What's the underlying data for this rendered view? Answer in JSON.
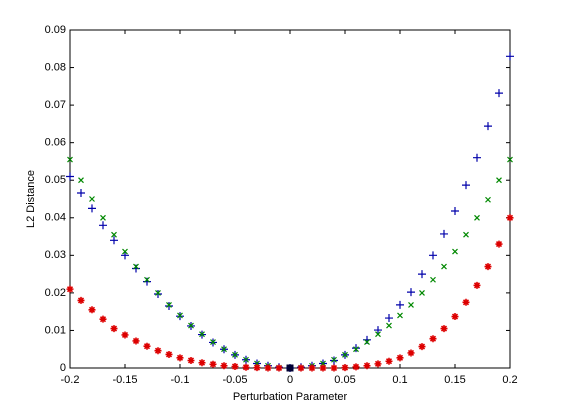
{
  "chart_data": {
    "type": "scatter",
    "xlabel": "Perturbation Parameter",
    "ylabel": "L2 Distance",
    "x": [
      -0.2,
      -0.19,
      -0.18,
      -0.17,
      -0.16,
      -0.15,
      -0.14,
      -0.13,
      -0.12,
      -0.11,
      -0.1,
      -0.09,
      -0.08,
      -0.07,
      -0.06,
      -0.05,
      -0.04,
      -0.03,
      -0.02,
      -0.01,
      0,
      0.01,
      0.02,
      0.03,
      0.04,
      0.05,
      0.06,
      0.07,
      0.08,
      0.09,
      0.1,
      0.11,
      0.12,
      0.13,
      0.14,
      0.15,
      0.16,
      0.17,
      0.18,
      0.19,
      0.2
    ],
    "series": [
      {
        "marker": "plus",
        "color": "#0000aa",
        "values": [
          0.051,
          0.0466,
          0.0425,
          0.038,
          0.034,
          0.03,
          0.0265,
          0.023,
          0.0197,
          0.0165,
          0.0138,
          0.0112,
          0.0089,
          0.0068,
          0.005,
          0.0035,
          0.0022,
          0.0012,
          0.0006,
          0.0002,
          0,
          0.0002,
          0.0006,
          0.0012,
          0.002,
          0.0035,
          0.0053,
          0.0075,
          0.0101,
          0.0133,
          0.0168,
          0.0202,
          0.025,
          0.03,
          0.0357,
          0.0418,
          0.0487,
          0.056,
          0.0644,
          0.0732,
          0.083
        ]
      },
      {
        "marker": "x",
        "color": "#008800",
        "values": [
          0.0555,
          0.05,
          0.045,
          0.04,
          0.0355,
          0.031,
          0.027,
          0.0235,
          0.02,
          0.0168,
          0.014,
          0.0113,
          0.009,
          0.0069,
          0.005,
          0.0035,
          0.0022,
          0.0012,
          0.0006,
          0.0001,
          0,
          0.0001,
          0.0006,
          0.0012,
          0.0022,
          0.0035,
          0.005,
          0.0069,
          0.009,
          0.0113,
          0.014,
          0.0168,
          0.02,
          0.0235,
          0.027,
          0.031,
          0.0355,
          0.04,
          0.0448,
          0.05,
          0.0555
        ]
      },
      {
        "marker": "asterisk",
        "color": "#dd0000",
        "values": [
          0.021,
          0.018,
          0.0155,
          0.013,
          0.0105,
          0.0088,
          0.0072,
          0.0058,
          0.0046,
          0.0036,
          0.0027,
          0.002,
          0.0014,
          0.001,
          0.0006,
          0.0004,
          0.0002,
          0.0001,
          0,
          0,
          0,
          0,
          0,
          0,
          0,
          0.0001,
          0.0003,
          0.0006,
          0.0011,
          0.0018,
          0.0027,
          0.004,
          0.0057,
          0.0078,
          0.0105,
          0.0137,
          0.0175,
          0.022,
          0.027,
          0.033,
          0.04
        ]
      },
      {
        "marker": "square",
        "color": "#000033",
        "values": [
          null,
          null,
          null,
          null,
          null,
          null,
          null,
          null,
          null,
          null,
          null,
          null,
          null,
          null,
          null,
          null,
          null,
          null,
          null,
          null,
          0,
          null,
          null,
          null,
          null,
          null,
          null,
          null,
          null,
          null,
          null,
          null,
          null,
          null,
          null,
          null,
          null,
          null,
          null,
          null,
          null
        ]
      }
    ],
    "xlim": [
      -0.2,
      0.2
    ],
    "xticks": [
      -0.2,
      -0.15,
      -0.1,
      -0.05,
      0,
      0.05,
      0.1,
      0.15,
      0.2
    ],
    "ylim": [
      0,
      0.09
    ],
    "yticks": [
      0,
      0.01,
      0.02,
      0.03,
      0.04,
      0.05,
      0.06,
      0.07,
      0.08,
      0.09
    ]
  }
}
